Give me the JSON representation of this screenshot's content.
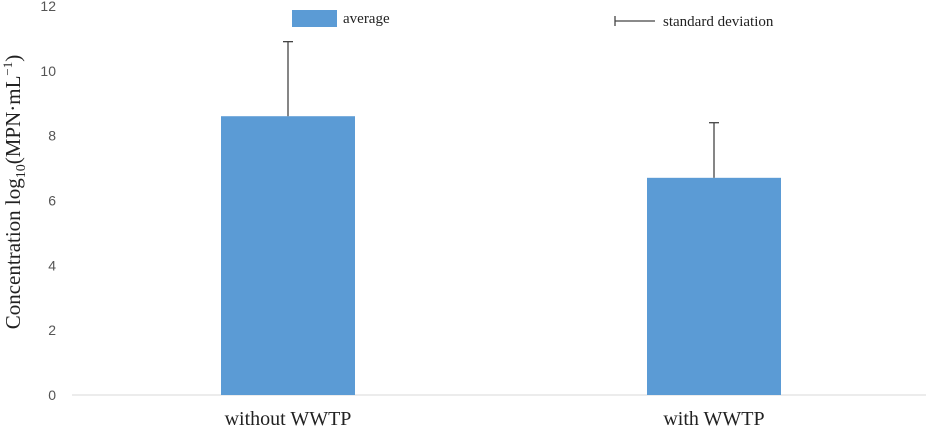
{
  "chart_data": {
    "type": "bar",
    "categories": [
      "without WWTP",
      "with WWTP"
    ],
    "series": [
      {
        "name": "average",
        "values": [
          8.6,
          6.7
        ],
        "error": [
          2.3,
          1.7
        ],
        "color": "#5b9bd5"
      }
    ],
    "error_label": "standard deviation",
    "ylabel": {
      "prefix": "Concentration log",
      "subscript": "10",
      "middle": "(MPN·mL",
      "superscript": "−1",
      "suffix": ")"
    },
    "ylim": [
      0,
      12
    ],
    "yticks": [
      "0",
      "2",
      "4",
      "6",
      "8",
      "10",
      "12"
    ],
    "grid": false,
    "legend_position": "top"
  }
}
